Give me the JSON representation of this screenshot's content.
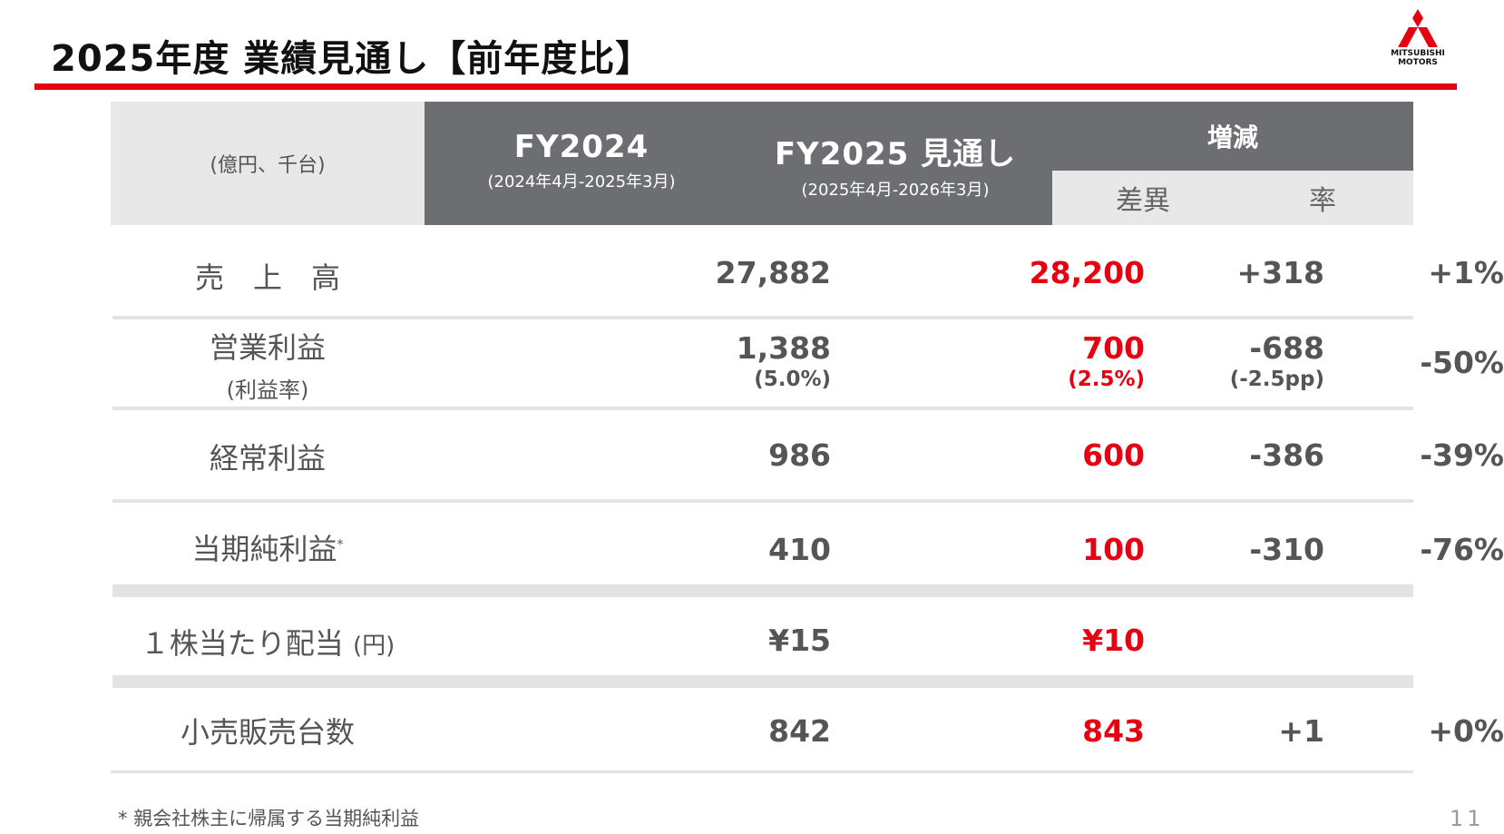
{
  "title": "2025年度 業績見通し【前年度比】",
  "logo": {
    "brand": "MITSUBISHI\nMOTORS",
    "icon": "three-diamonds-icon",
    "color": "#e60012"
  },
  "accent_color": "#e60012",
  "table": {
    "unit_label": "(億円、千台)",
    "columns": {
      "fy2024": {
        "title": "FY2024",
        "period": "(2024年4月-2025年3月)"
      },
      "fy2025": {
        "title": "FY2025 見通し",
        "period": "(2025年4月-2026年3月)"
      },
      "change": {
        "title": "増減",
        "diff": "差異",
        "rate": "率"
      }
    },
    "rows": [
      {
        "label": "売　上　高",
        "fy2024": "27,882",
        "fy2025": "28,200",
        "diff": "+318",
        "rate": "+1%"
      },
      {
        "label": "営業利益",
        "label_sub": "(利益率)",
        "fy2024": "1,388",
        "fy2024_sub": "(5.0%)",
        "fy2025": "700",
        "fy2025_sub": "(2.5%)",
        "diff": "-688",
        "diff_sub": "(-2.5pp)",
        "rate": "-50%"
      },
      {
        "label": "経常利益",
        "fy2024": "986",
        "fy2025": "600",
        "diff": "-386",
        "rate": "-39%"
      },
      {
        "label": "当期純利益",
        "label_mark": "*",
        "fy2024": "410",
        "fy2025": "100",
        "diff": "-310",
        "rate": "-76%"
      },
      {
        "label": "１株当たり配当",
        "label_unit": "(円)",
        "fy2024": "¥15",
        "fy2025": "¥10",
        "diff": "",
        "rate": ""
      },
      {
        "label": "小売販売台数",
        "fy2024": "842",
        "fy2025": "843",
        "diff": "+1",
        "rate": "+0%"
      }
    ]
  },
  "footnote": "* 親会社株主に帰属する当期純利益",
  "page_number": "11"
}
